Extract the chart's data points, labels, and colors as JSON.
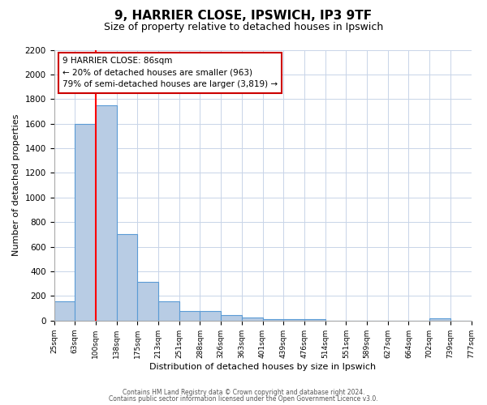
{
  "title": "9, HARRIER CLOSE, IPSWICH, IP3 9TF",
  "subtitle": "Size of property relative to detached houses in Ipswich",
  "xlabel": "Distribution of detached houses by size in Ipswich",
  "ylabel": "Number of detached properties",
  "bar_values": [
    160,
    1600,
    1750,
    700,
    315,
    155,
    80,
    80,
    45,
    25,
    15,
    15,
    15,
    0,
    0,
    0,
    0,
    0,
    20,
    0
  ],
  "bar_labels": [
    "25sqm",
    "63sqm",
    "100sqm",
    "138sqm",
    "175sqm",
    "213sqm",
    "251sqm",
    "288sqm",
    "326sqm",
    "363sqm",
    "401sqm",
    "439sqm",
    "476sqm",
    "514sqm",
    "551sqm",
    "589sqm",
    "627sqm",
    "664sqm",
    "702sqm",
    "739sqm",
    "777sqm"
  ],
  "bar_color": "#b8cce4",
  "bar_edge_color": "#5b9bd5",
  "red_line_x": 2,
  "red_line_color": "#ff0000",
  "annotation_line1": "9 HARRIER CLOSE: 86sqm",
  "annotation_line2": "← 20% of detached houses are smaller (963)",
  "annotation_line3": "79% of semi-detached houses are larger (3,819) →",
  "ylim": [
    0,
    2200
  ],
  "yticks": [
    0,
    200,
    400,
    600,
    800,
    1000,
    1200,
    1400,
    1600,
    1800,
    2000,
    2200
  ],
  "footer_line1": "Contains HM Land Registry data © Crown copyright and database right 2024.",
  "footer_line2": "Contains public sector information licensed under the Open Government Licence v3.0.",
  "background_color": "#ffffff",
  "grid_color": "#c8d4e8"
}
